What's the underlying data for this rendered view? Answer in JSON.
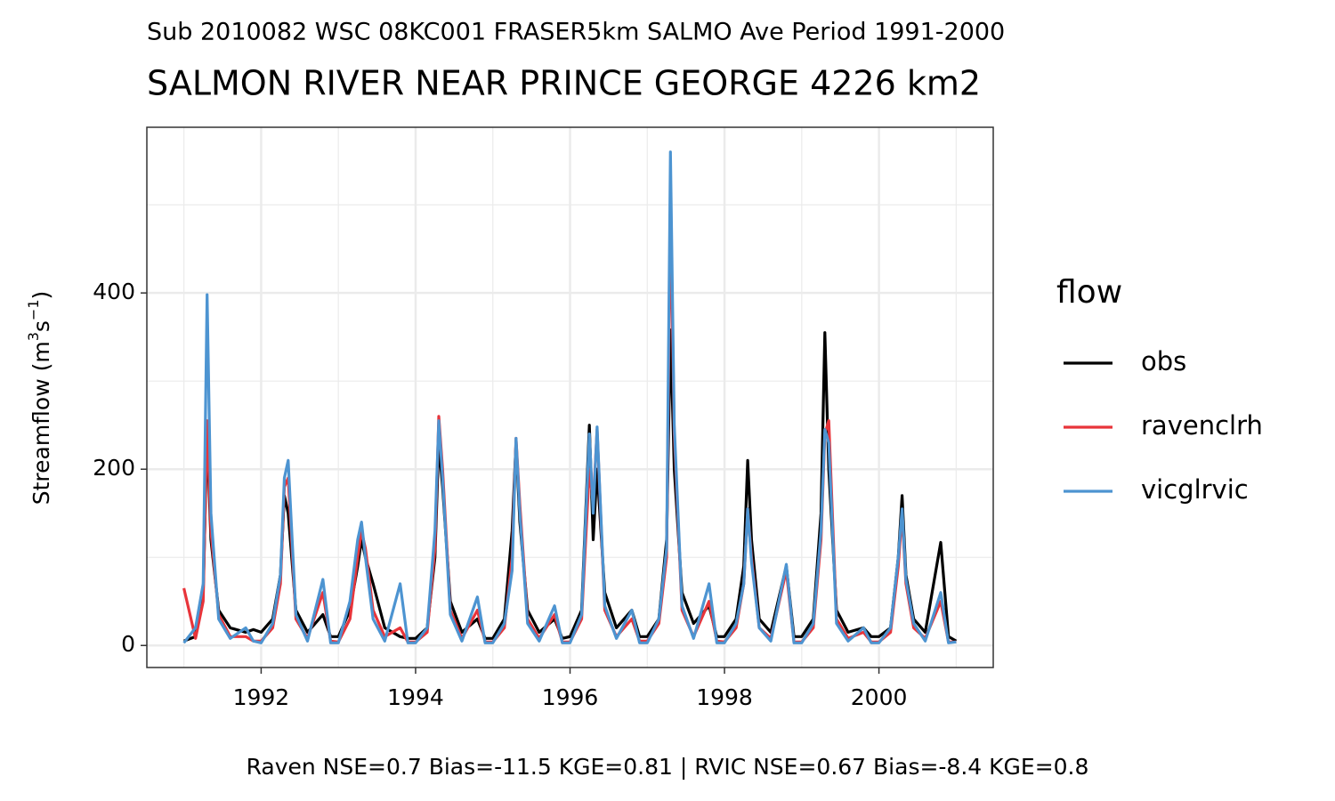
{
  "chart_data": {
    "type": "line",
    "subtitle": "Sub 2010082 WSC 08KC001 FRASER5km SALMO Ave Period 1991-2000",
    "title": "SALMON RIVER NEAR PRINCE GEORGE 4226 km2",
    "y_label": [
      "Streamflow (m",
      "3",
      "s",
      "−1",
      ")"
    ],
    "legend_title": "flow",
    "caption": "Raven NSE=0.7 Bias=-11.5 KGE=0.81 | RVIC NSE=0.67 Bias=-8.4 KGE=0.8",
    "grid": true,
    "legend": "right",
    "xlim": [
      1990.52,
      2001.48
    ],
    "xticks": [
      1992,
      1994,
      1996,
      1998,
      2000
    ],
    "xminor": [
      1991,
      1993,
      1995,
      1997,
      1999,
      2001
    ],
    "ylim": [
      -25,
      588
    ],
    "yticks": [
      0,
      200,
      400
    ],
    "yminor": [
      100,
      300,
      500
    ],
    "x": [
      1991.0,
      1991.15,
      1991.25,
      1991.3,
      1991.35,
      1991.45,
      1991.6,
      1991.8,
      1991.9,
      1992.0,
      1992.15,
      1992.25,
      1992.3,
      1992.35,
      1992.45,
      1992.6,
      1992.8,
      1992.9,
      1993.0,
      1993.15,
      1993.25,
      1993.3,
      1993.35,
      1993.45,
      1993.6,
      1993.8,
      1993.9,
      1994.0,
      1994.15,
      1994.25,
      1994.3,
      1994.35,
      1994.45,
      1994.6,
      1994.8,
      1994.9,
      1995.0,
      1995.15,
      1995.25,
      1995.3,
      1995.35,
      1995.45,
      1995.6,
      1995.8,
      1995.9,
      1996.0,
      1996.15,
      1996.25,
      1996.3,
      1996.35,
      1996.45,
      1996.6,
      1996.8,
      1996.9,
      1997.0,
      1997.15,
      1997.25,
      1997.3,
      1997.35,
      1997.45,
      1997.6,
      1997.8,
      1997.9,
      1998.0,
      1998.15,
      1998.25,
      1998.3,
      1998.35,
      1998.45,
      1998.6,
      1998.8,
      1998.9,
      1999.0,
      1999.15,
      1999.25,
      1999.3,
      1999.35,
      1999.45,
      1999.6,
      1999.8,
      1999.9,
      2000.0,
      2000.15,
      2000.25,
      2000.3,
      2000.35,
      2000.45,
      2000.6,
      2000.8,
      2000.9,
      2001.0
    ],
    "series": [
      {
        "name": "obs",
        "color": "#000000",
        "values": [
          5,
          10,
          60,
          240,
          120,
          40,
          20,
          15,
          18,
          15,
          30,
          80,
          170,
          150,
          40,
          15,
          35,
          10,
          10,
          40,
          90,
          120,
          100,
          70,
          20,
          10,
          8,
          8,
          20,
          100,
          230,
          180,
          50,
          15,
          30,
          8,
          8,
          30,
          130,
          230,
          140,
          40,
          15,
          30,
          8,
          10,
          40,
          250,
          120,
          200,
          60,
          20,
          40,
          10,
          10,
          30,
          120,
          358,
          200,
          60,
          25,
          45,
          10,
          10,
          30,
          90,
          210,
          120,
          30,
          15,
          90,
          10,
          10,
          30,
          150,
          355,
          200,
          40,
          15,
          20,
          10,
          10,
          20,
          100,
          170,
          80,
          30,
          15,
          117,
          10,
          5
        ]
      },
      {
        "name": "ravenclrh",
        "color": "#e8343a",
        "values": [
          65,
          8,
          50,
          255,
          130,
          35,
          10,
          10,
          5,
          5,
          20,
          70,
          180,
          190,
          30,
          8,
          60,
          5,
          4,
          30,
          100,
          130,
          110,
          40,
          10,
          20,
          4,
          4,
          15,
          110,
          260,
          200,
          40,
          8,
          40,
          4,
          4,
          20,
          100,
          235,
          160,
          30,
          8,
          35,
          4,
          4,
          30,
          200,
          160,
          245,
          40,
          10,
          30,
          5,
          5,
          25,
          100,
          500,
          240,
          40,
          10,
          50,
          5,
          4,
          20,
          70,
          155,
          100,
          20,
          8,
          85,
          4,
          4,
          20,
          120,
          240,
          255,
          30,
          8,
          15,
          4,
          4,
          15,
          90,
          150,
          70,
          20,
          8,
          50,
          4,
          4
        ]
      },
      {
        "name": "vicglrvic",
        "color": "#4d94d1",
        "values": [
          3,
          20,
          70,
          398,
          150,
          30,
          8,
          20,
          5,
          3,
          25,
          80,
          190,
          210,
          35,
          5,
          75,
          3,
          3,
          50,
          120,
          140,
          100,
          30,
          5,
          70,
          3,
          3,
          20,
          130,
          255,
          190,
          35,
          5,
          55,
          3,
          3,
          25,
          85,
          235,
          150,
          25,
          5,
          45,
          3,
          3,
          35,
          240,
          150,
          248,
          45,
          8,
          40,
          3,
          3,
          30,
          110,
          560,
          250,
          45,
          8,
          70,
          3,
          3,
          25,
          70,
          155,
          95,
          20,
          5,
          92,
          3,
          3,
          25,
          130,
          245,
          230,
          25,
          5,
          20,
          3,
          3,
          20,
          100,
          155,
          75,
          25,
          5,
          60,
          3,
          4
        ]
      }
    ]
  }
}
